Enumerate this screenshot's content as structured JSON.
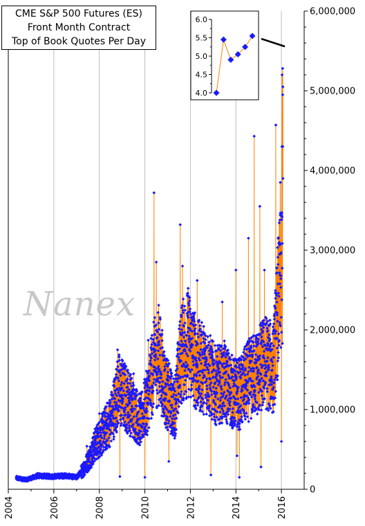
{
  "title_lines": [
    "CME S&P 500 Futures (ES)",
    "Front Month Contract",
    "Top of Book Quotes Per Day"
  ],
  "watermark": "Nanex",
  "colors": {
    "line": "#ff8000",
    "marker": "#1a1aff",
    "grid": "#bdbdbd",
    "axis": "#000000"
  },
  "chart_data": [
    {
      "type": "line",
      "subtype": "daily series with diamond markers",
      "title": "CME S&P 500 Futures (ES) Front Month Contract Top of Book Quotes Per Day",
      "x_axis": {
        "min": 2004,
        "max": 2017,
        "tick_values": [
          2004,
          2006,
          2008,
          2010,
          2012,
          2014,
          2016
        ],
        "tick_labels": [
          "2004",
          "2006",
          "2008",
          "2010",
          "2012",
          "2014",
          "2016"
        ],
        "label_rotation": "vertical"
      },
      "y_axis": {
        "side": "right",
        "min": 0,
        "max": 6000000,
        "tick_values": [
          0,
          1000000,
          2000000,
          3000000,
          4000000,
          5000000,
          6000000
        ],
        "tick_labels": [
          "0",
          "1,000,000",
          "2,000,000",
          "3,000,000",
          "4,000,000",
          "5,000,000",
          "6,000,000"
        ]
      },
      "grid": "vertical lines at tick years",
      "legend": "none",
      "series": [
        {
          "anchors": [
            [
              2004.35,
              140000
            ],
            [
              2004.8,
              120000
            ],
            [
              2005.3,
              170000
            ],
            [
              2005.9,
              160000
            ],
            [
              2006.5,
              170000
            ],
            [
              2007.0,
              150000
            ],
            [
              2007.25,
              230000
            ],
            [
              2007.55,
              380000
            ],
            [
              2007.8,
              550000
            ],
            [
              2008.1,
              680000
            ],
            [
              2008.5,
              870000
            ],
            [
              2008.85,
              1250000
            ],
            [
              2009.3,
              1100000
            ],
            [
              2009.8,
              850000
            ],
            [
              2010.1,
              1100000
            ],
            [
              2010.35,
              1500000
            ],
            [
              2010.6,
              1700000
            ],
            [
              2010.9,
              1250000
            ],
            [
              2011.3,
              1000000
            ],
            [
              2011.6,
              1700000
            ],
            [
              2011.9,
              1850000
            ],
            [
              2012.3,
              1550000
            ],
            [
              2012.7,
              1500000
            ],
            [
              2013.1,
              1300000
            ],
            [
              2013.5,
              1350000
            ],
            [
              2013.9,
              1200000
            ],
            [
              2014.2,
              1200000
            ],
            [
              2014.5,
              1350000
            ],
            [
              2014.9,
              1450000
            ],
            [
              2015.3,
              1600000
            ],
            [
              2015.65,
              1500000
            ],
            [
              2015.85,
              2300000
            ],
            [
              2016.05,
              2800000
            ]
          ],
          "spikes": [
            [
              2007.45,
              540000
            ],
            [
              2008.0,
              950000
            ],
            [
              2008.8,
              1750000
            ],
            [
              2008.9,
              160000
            ],
            [
              2009.5,
              1450000
            ],
            [
              2010.0,
              150000
            ],
            [
              2010.15,
              1870000
            ],
            [
              2010.4,
              3720000
            ],
            [
              2010.5,
              2850000
            ],
            [
              2011.05,
              350000
            ],
            [
              2011.55,
              3320000
            ],
            [
              2011.65,
              2800000
            ],
            [
              2012.3,
              2620000
            ],
            [
              2012.9,
              180000
            ],
            [
              2013.4,
              2350000
            ],
            [
              2014.0,
              2750000
            ],
            [
              2014.05,
              420000
            ],
            [
              2014.15,
              150000
            ],
            [
              2014.55,
              3150000
            ],
            [
              2014.8,
              4430000
            ],
            [
              2015.05,
              3550000
            ],
            [
              2015.1,
              280000
            ],
            [
              2015.25,
              2750000
            ],
            [
              2015.75,
              4570000
            ],
            [
              2015.95,
              3850000
            ],
            [
              2016.0,
              600000
            ],
            [
              2016.02,
              4300000
            ],
            [
              2016.03,
              5200000
            ]
          ]
        }
      ]
    },
    {
      "type": "line",
      "subtype": "inset",
      "x_axis": {
        "labels": "none"
      },
      "y_axis": {
        "min": 4.0,
        "max": 6.0,
        "tick_labels": [
          "4.0",
          "4.5",
          "5.0",
          "5.5",
          "6.0"
        ]
      },
      "series": [
        {
          "values": [
            4.0,
            5.45,
            4.9,
            5.05,
            5.25,
            5.55
          ]
        }
      ]
    }
  ]
}
